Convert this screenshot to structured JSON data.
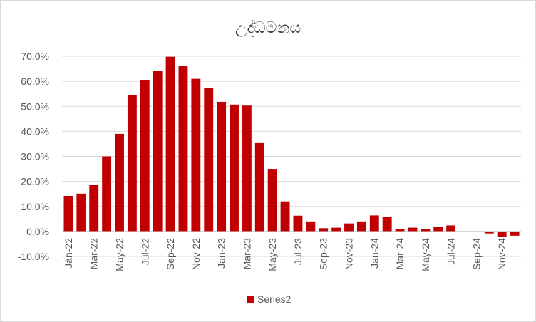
{
  "chart_data": {
    "type": "bar",
    "title": "උද්ධමනය",
    "xlabel": "",
    "ylabel": "",
    "ylim": [
      -0.1,
      0.7
    ],
    "y_ticks": [
      "-10.0%",
      "0.0%",
      "10.0%",
      "20.0%",
      "30.0%",
      "40.0%",
      "50.0%",
      "60.0%",
      "70.0%"
    ],
    "y_tick_values": [
      -0.1,
      0.0,
      0.1,
      0.2,
      0.3,
      0.4,
      0.5,
      0.6,
      0.7
    ],
    "categories": [
      "Jan-22",
      "Feb-22",
      "Mar-22",
      "Apr-22",
      "May-22",
      "Jun-22",
      "Jul-22",
      "Aug-22",
      "Sep-22",
      "Oct-22",
      "Nov-22",
      "Dec-22",
      "Jan-23",
      "Feb-23",
      "Mar-23",
      "Apr-23",
      "May-23",
      "Jun-23",
      "Jul-23",
      "Aug-23",
      "Sep-23",
      "Oct-23",
      "Nov-23",
      "Dec-23",
      "Jan-24",
      "Feb-24",
      "Mar-24",
      "Apr-24",
      "May-24",
      "Jun-24",
      "Jul-24",
      "Aug-24",
      "Sep-24",
      "Oct-24",
      "Nov-24",
      "Dec-24"
    ],
    "x_tick_labels": [
      "Jan-22",
      "Mar-22",
      "May-22",
      "Jul-22",
      "Sep-22",
      "Nov-22",
      "Jan-23",
      "Mar-23",
      "May-23",
      "Jul-23",
      "Sep-23",
      "Nov-23",
      "Jan-24",
      "Mar-24",
      "May-24",
      "Jul-24",
      "Sep-24",
      "Nov-24"
    ],
    "series": [
      {
        "name": "Series2",
        "color": "#c00000",
        "values": [
          0.142,
          0.151,
          0.185,
          0.3,
          0.39,
          0.546,
          0.606,
          0.642,
          0.698,
          0.66,
          0.61,
          0.572,
          0.518,
          0.507,
          0.503,
          0.353,
          0.25,
          0.12,
          0.063,
          0.04,
          0.013,
          0.015,
          0.032,
          0.04,
          0.064,
          0.059,
          0.009,
          0.015,
          0.009,
          0.017,
          0.024,
          0.0,
          -0.003,
          -0.008,
          -0.021,
          -0.017
        ]
      }
    ],
    "grid": true,
    "legend": "bottom"
  }
}
